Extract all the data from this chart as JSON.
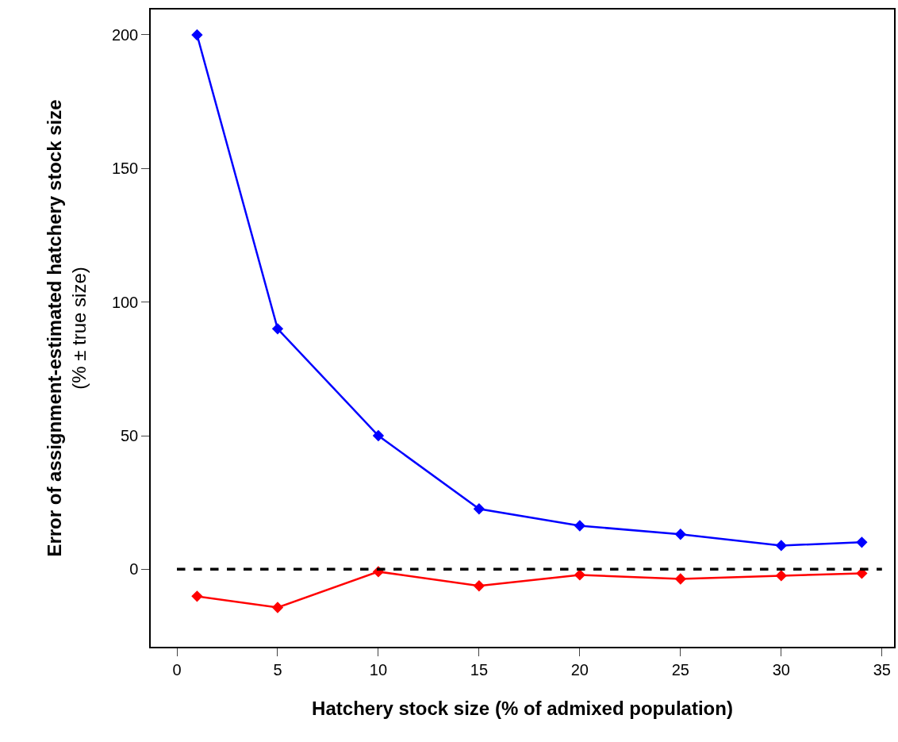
{
  "chart_data": {
    "type": "line",
    "xlabel": "Hatchery stock size (% of admixed population)",
    "ylabel": "Error of assignment-estimated hatchery stock size\n(% ± true size)",
    "x": [
      1,
      5,
      10,
      15,
      20,
      25,
      30,
      34
    ],
    "series": [
      {
        "color": "#0000ff",
        "values": [
          200,
          90,
          50,
          22.6,
          16.3,
          13.1,
          8.9,
          10.1
        ]
      },
      {
        "color": "#ff0000",
        "values": [
          -10.1,
          -14.3,
          -0.9,
          -6.2,
          -2.1,
          -3.6,
          -2.4,
          -1.5
        ]
      }
    ],
    "xlim": [
      -1.3,
      35.6
    ],
    "ylim": [
      -29,
      209.5
    ],
    "xticks": [
      0,
      5,
      10,
      15,
      20,
      25,
      30,
      35
    ],
    "yticks": [
      0,
      50,
      100,
      150,
      200
    ],
    "ref_lines": [
      {
        "axis": "y",
        "value": 0,
        "color": "#000000",
        "line_style": "dashed"
      }
    ],
    "marker": "diamond",
    "line_style": "solid"
  }
}
